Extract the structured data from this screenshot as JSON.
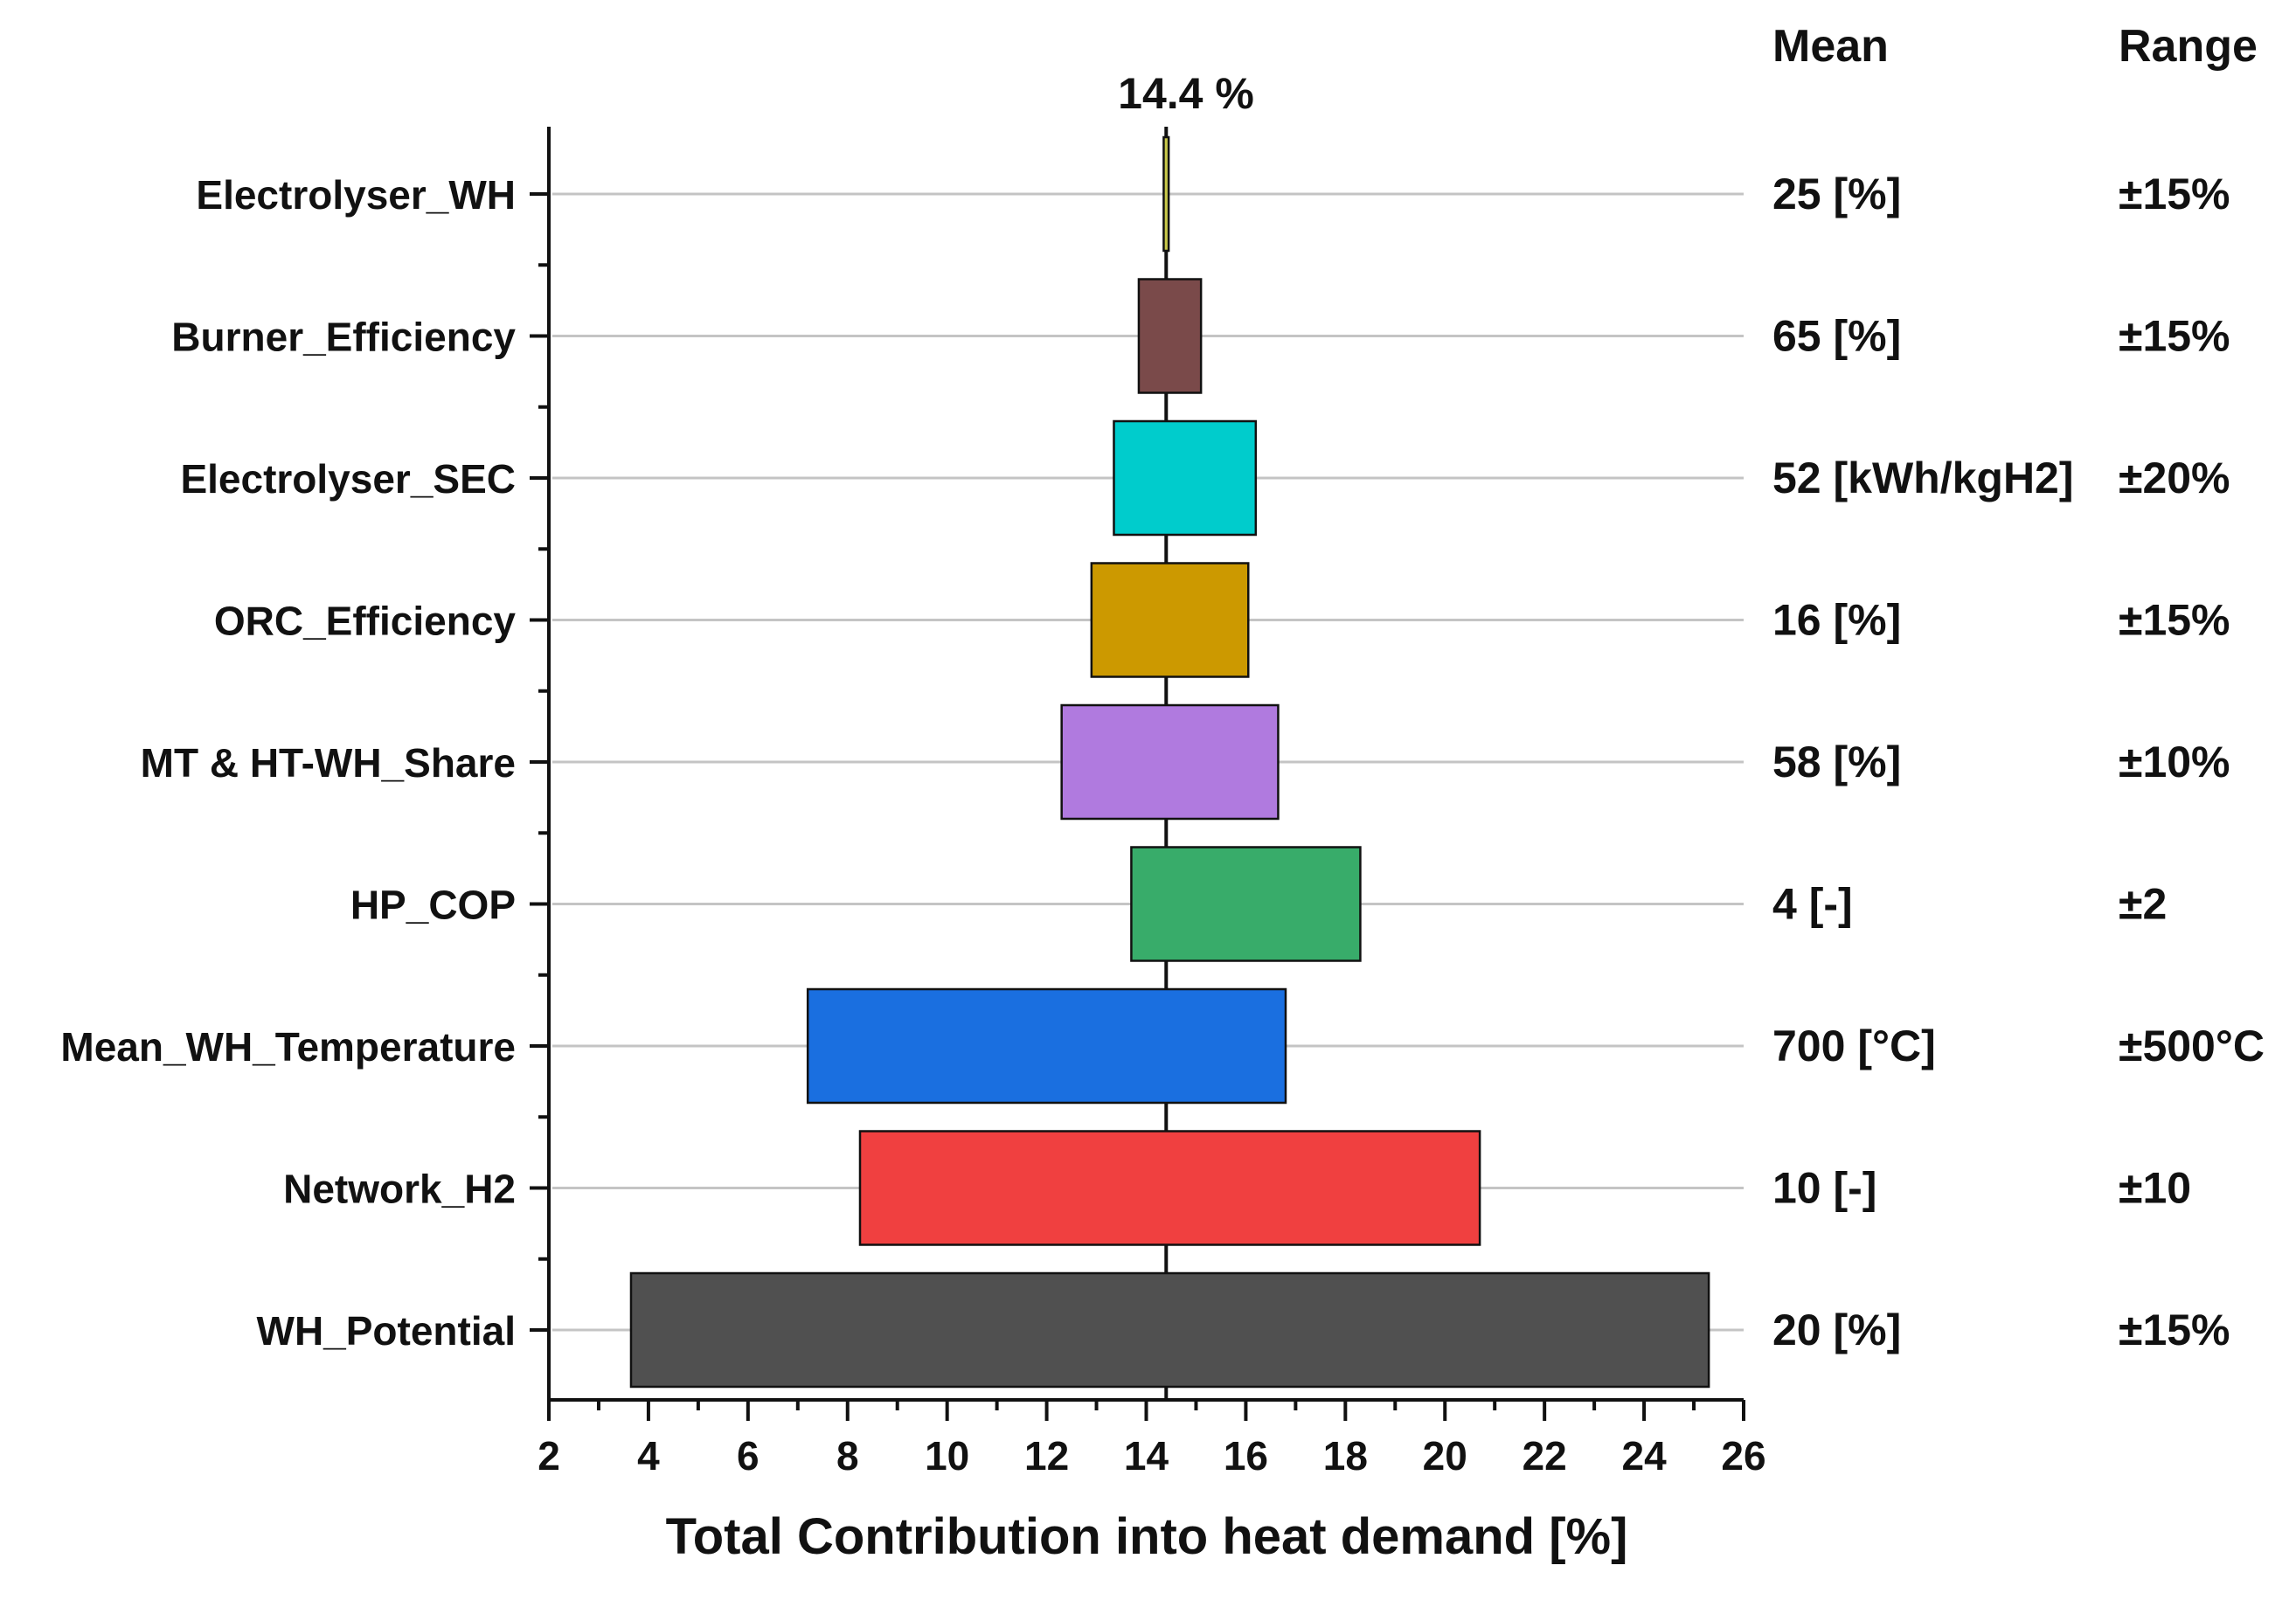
{
  "chart_data": {
    "type": "tornado",
    "title": "",
    "xlabel": "Total Contribution into heat demand [%]",
    "ylabel": "",
    "xlim": [
      2,
      26
    ],
    "x_ticks": [
      2,
      4,
      6,
      8,
      10,
      12,
      14,
      16,
      18,
      20,
      22,
      24,
      26
    ],
    "baseline": 14.4,
    "baseline_label": "14.4 %",
    "grid": true,
    "column_headers": {
      "mean": "Mean",
      "range": "Range"
    },
    "bars": [
      {
        "label": "Electrolyser_WH",
        "low": 14.35,
        "high": 14.45,
        "color": "#c8c84a",
        "mean": "25 [%]",
        "range": "±15%"
      },
      {
        "label": "Burner_Efficiency",
        "low": 13.85,
        "high": 15.1,
        "color": "#7a4a4a",
        "mean": "65 [%]",
        "range": "±15%"
      },
      {
        "label": "Electrolyser_SEC",
        "low": 13.35,
        "high": 16.2,
        "color": "#00cccc",
        "mean": "52 [kWh/kgH2]",
        "range": "±20%"
      },
      {
        "label": "ORC_Efficiency",
        "low": 12.9,
        "high": 16.05,
        "color": "#cc9900",
        "mean": "16 [%]",
        "range": "±15%"
      },
      {
        "label": "MT & HT-WH_Share",
        "low": 12.3,
        "high": 16.65,
        "color": "#b07adf",
        "mean": "58 [%]",
        "range": "±10%"
      },
      {
        "label": "HP_COP",
        "low": 13.7,
        "high": 18.3,
        "color": "#38ac6a",
        "mean": "4 [-]",
        "range": "±2"
      },
      {
        "label": "Mean_WH_Temperature",
        "low": 7.2,
        "high": 16.8,
        "color": "#1a6fe0",
        "mean": "700 [°C]",
        "range": "±500°C"
      },
      {
        "label": "Network_H2",
        "low": 8.25,
        "high": 20.7,
        "color": "#f04040",
        "mean": "10 [-]",
        "range": "±10"
      },
      {
        "label": "WH_Potential",
        "low": 3.65,
        "high": 25.3,
        "color": "#505050",
        "mean": "20 [%]",
        "range": "±15%"
      }
    ]
  }
}
